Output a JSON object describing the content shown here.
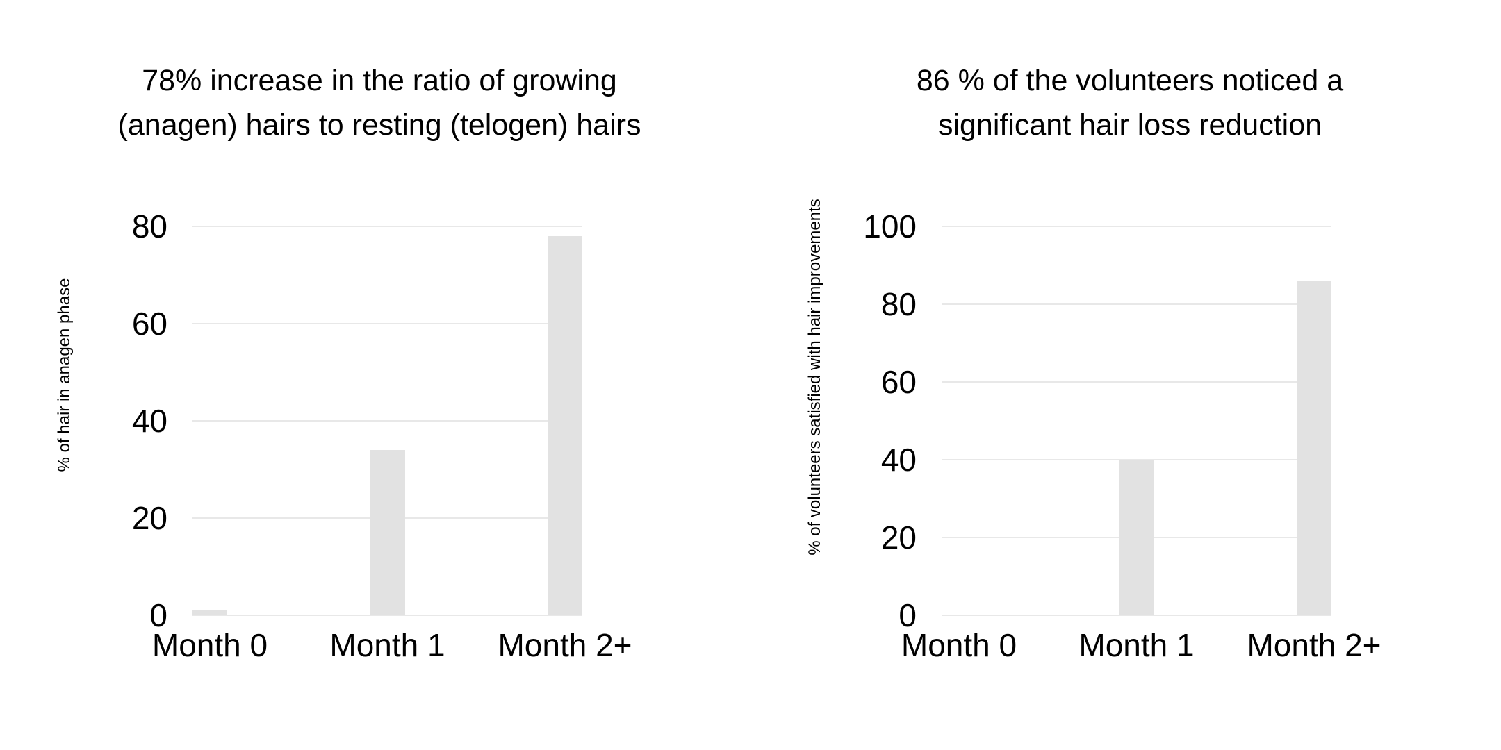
{
  "page": {
    "background_color": "#ffffff"
  },
  "chart_data": [
    {
      "type": "bar",
      "title": "78% increase in the ratio of growing (anagen) hairs to resting (telogen) hairs",
      "title_lines": [
        "78% increase in the ratio of growing",
        "(anagen) hairs to resting (telogen) hairs"
      ],
      "ylabel": "% of hair in anagen phase",
      "xlabel": "",
      "categories": [
        "Month 0",
        "Month 1",
        "Month 2+"
      ],
      "values": [
        1,
        34,
        78
      ],
      "yticks": [
        0,
        20,
        40,
        60,
        80
      ],
      "ylim": [
        0,
        80
      ],
      "grid": true,
      "legend": false,
      "bar_color": "#e2e2e2",
      "gridline_color": "#e8e8e8",
      "text_color": "#000000"
    },
    {
      "type": "bar",
      "title": "86 % of the volunteers noticed a significant hair loss reduction",
      "title_lines": [
        "86 % of the volunteers noticed a",
        "significant hair loss reduction"
      ],
      "ylabel": "% of volunteers satisfied with hair improvements",
      "xlabel": "",
      "categories": [
        "Month 0",
        "Month 1",
        "Month 2+"
      ],
      "values": [
        0,
        40,
        86
      ],
      "yticks": [
        0,
        20,
        40,
        60,
        80,
        100
      ],
      "ylim": [
        0,
        100
      ],
      "grid": true,
      "legend": false,
      "bar_color": "#e2e2e2",
      "gridline_color": "#e8e8e8",
      "text_color": "#000000"
    }
  ]
}
